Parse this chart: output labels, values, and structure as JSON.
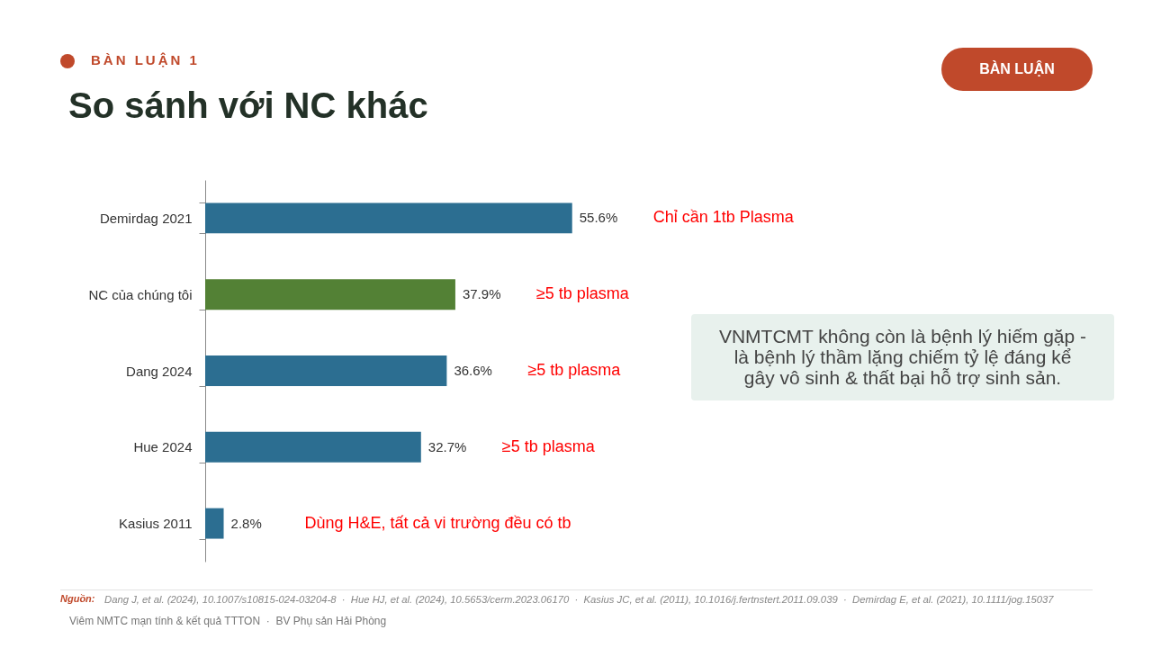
{
  "chart_data": {
    "type": "bar",
    "orientation": "horizontal",
    "title": "So sánh với NC khác",
    "subtitle": "BÀN LUẬN 1",
    "categories": [
      "Demirdag 2021",
      "NC của chúng tôi",
      "Dang 2024",
      "Hue 2024",
      "Kasius 2011"
    ],
    "values": [
      55.6,
      37.9,
      36.6,
      32.7,
      2.8
    ],
    "colors": [
      "#2c6e91",
      "#538135",
      "#2c6e91",
      "#2c6e91",
      "#2c6e91"
    ],
    "value_labels": [
      "55.6%",
      "37.9%",
      "36.6%",
      "32.7%",
      "2.8%"
    ],
    "tick_labels": "y",
    "annotations": [
      "Chỉ cần 1tb Plasma",
      "≥5 tb plasma",
      "≥5 tb plasma",
      "≥5 tb plasma",
      "Dùng H&E, tất cả vi trường đều có tb",
      "BÀN LUẬN",
      "VNMTCMT không còn là bệnh lý hiếm gặp - là bệnh lý thầm lặng chiếm tỷ lệ đáng kể gây vô sinh & thất bại hỗ trợ sinh sản.",
      "Nguồn:",
      "Dang J, et al. (2024), 10.1007/s10815-024-03204-8  ·  Hue HJ, et al. (2024), 10.5653/cerm.2023.06170  ·  Kasius JC, et al. (2011), 10.1016/j.fertnstert.2011.09.039  ·  Demirdag E, et al. (2021), 10.1111/jog.15037",
      "Viêm NMTC mạn tính & kết quả TTTON  ·  BV Phụ sản Hải Phòng"
    ]
  }
}
